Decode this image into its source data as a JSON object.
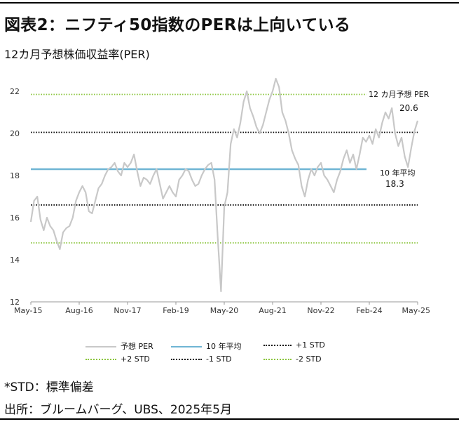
{
  "header": {
    "title": "図表2：ニフティ50指数のPERは上向いている",
    "subtitle": "12カ月予想株価収益率(PER)"
  },
  "footer": {
    "note": "*STD：標準偏差",
    "source": "出所：ブルームバーグ、UBS、2025年5月"
  },
  "legend": {
    "forward_per": "予想 PER",
    "avg": "10 年平均",
    "plus1": "+1 STD",
    "plus2": "+2 STD",
    "minus1": "-1 STD",
    "minus2": "-2 STD"
  },
  "annotations": {
    "per_label": "12 カ月予想 PER",
    "per_value": "20.6",
    "avg_label": "10 年平均",
    "avg_value": "18.3"
  },
  "colors": {
    "per_line": "#c8c8c8",
    "avg_line": "#6fb5d4",
    "std1_line": "#000000",
    "std2_line": "#8cc63f"
  },
  "chart_data": {
    "type": "line",
    "x_ticks": [
      "May-15",
      "Aug-16",
      "Nov-17",
      "Feb-19",
      "May-20",
      "Aug-21",
      "Nov-22",
      "Feb-24",
      "May-25"
    ],
    "y_ticks": [
      12,
      14,
      16,
      18,
      20,
      22
    ],
    "ylim": [
      12,
      23
    ],
    "xlim": [
      "2015-05",
      "2025-05"
    ],
    "grid": false,
    "legend_position": "bottom",
    "series": [
      {
        "name": "予想 PER",
        "points": [
          [
            "2015-05",
            15.8
          ],
          [
            "2015-06",
            16.8
          ],
          [
            "2015-07",
            17.0
          ],
          [
            "2015-08",
            15.9
          ],
          [
            "2015-09",
            15.4
          ],
          [
            "2015-10",
            16.0
          ],
          [
            "2015-11",
            15.6
          ],
          [
            "2015-12",
            15.4
          ],
          [
            "2016-01",
            14.9
          ],
          [
            "2016-02",
            14.5
          ],
          [
            "2016-03",
            15.3
          ],
          [
            "2016-04",
            15.5
          ],
          [
            "2016-05",
            15.6
          ],
          [
            "2016-06",
            16.0
          ],
          [
            "2016-07",
            16.8
          ],
          [
            "2016-08",
            17.2
          ],
          [
            "2016-09",
            17.5
          ],
          [
            "2016-10",
            17.2
          ],
          [
            "2016-11",
            16.3
          ],
          [
            "2016-12",
            16.2
          ],
          [
            "2017-01",
            16.8
          ],
          [
            "2017-02",
            17.4
          ],
          [
            "2017-03",
            17.6
          ],
          [
            "2017-04",
            18.0
          ],
          [
            "2017-05",
            18.3
          ],
          [
            "2017-06",
            18.4
          ],
          [
            "2017-07",
            18.6
          ],
          [
            "2017-08",
            18.2
          ],
          [
            "2017-09",
            18.0
          ],
          [
            "2017-10",
            18.6
          ],
          [
            "2017-11",
            18.4
          ],
          [
            "2017-12",
            18.6
          ],
          [
            "2018-01",
            19.0
          ],
          [
            "2018-02",
            18.2
          ],
          [
            "2018-03",
            17.5
          ],
          [
            "2018-04",
            17.9
          ],
          [
            "2018-05",
            17.8
          ],
          [
            "2018-06",
            17.6
          ],
          [
            "2018-07",
            18.0
          ],
          [
            "2018-08",
            18.3
          ],
          [
            "2018-09",
            17.6
          ],
          [
            "2018-10",
            16.9
          ],
          [
            "2018-11",
            17.2
          ],
          [
            "2018-12",
            17.5
          ],
          [
            "2019-01",
            17.2
          ],
          [
            "2019-02",
            17.0
          ],
          [
            "2019-03",
            17.8
          ],
          [
            "2019-04",
            18.0
          ],
          [
            "2019-05",
            18.3
          ],
          [
            "2019-06",
            18.2
          ],
          [
            "2019-07",
            17.8
          ],
          [
            "2019-08",
            17.5
          ],
          [
            "2019-09",
            17.6
          ],
          [
            "2019-10",
            18.0
          ],
          [
            "2019-11",
            18.3
          ],
          [
            "2019-12",
            18.5
          ],
          [
            "2020-01",
            18.6
          ],
          [
            "2020-02",
            17.8
          ],
          [
            "2020-03",
            15.0
          ],
          [
            "2020-04",
            12.5
          ],
          [
            "2020-05",
            16.5
          ],
          [
            "2020-06",
            17.2
          ],
          [
            "2020-07",
            19.5
          ],
          [
            "2020-08",
            20.2
          ],
          [
            "2020-09",
            19.8
          ],
          [
            "2020-10",
            20.5
          ],
          [
            "2020-11",
            21.5
          ],
          [
            "2020-12",
            22.0
          ],
          [
            "2021-01",
            21.2
          ],
          [
            "2021-02",
            20.8
          ],
          [
            "2021-03",
            20.3
          ],
          [
            "2021-04",
            20.0
          ],
          [
            "2021-05",
            20.4
          ],
          [
            "2021-06",
            21.0
          ],
          [
            "2021-07",
            21.6
          ],
          [
            "2021-08",
            22.0
          ],
          [
            "2021-09",
            22.6
          ],
          [
            "2021-10",
            22.2
          ],
          [
            "2021-11",
            21.0
          ],
          [
            "2021-12",
            20.6
          ],
          [
            "2022-01",
            20.0
          ],
          [
            "2022-02",
            19.2
          ],
          [
            "2022-03",
            18.8
          ],
          [
            "2022-04",
            18.5
          ],
          [
            "2022-05",
            17.5
          ],
          [
            "2022-06",
            17.0
          ],
          [
            "2022-07",
            17.8
          ],
          [
            "2022-08",
            18.3
          ],
          [
            "2022-09",
            18.0
          ],
          [
            "2022-10",
            18.4
          ],
          [
            "2022-11",
            18.6
          ],
          [
            "2022-12",
            18.0
          ],
          [
            "2023-01",
            17.8
          ],
          [
            "2023-02",
            17.5
          ],
          [
            "2023-03",
            17.2
          ],
          [
            "2023-04",
            17.8
          ],
          [
            "2023-05",
            18.2
          ],
          [
            "2023-06",
            18.8
          ],
          [
            "2023-07",
            19.2
          ],
          [
            "2023-08",
            18.6
          ],
          [
            "2023-09",
            19.0
          ],
          [
            "2023-10",
            18.3
          ],
          [
            "2023-11",
            19.0
          ],
          [
            "2023-12",
            19.8
          ],
          [
            "2024-01",
            19.6
          ],
          [
            "2024-02",
            19.9
          ],
          [
            "2024-03",
            19.5
          ],
          [
            "2024-04",
            20.2
          ],
          [
            "2024-05",
            19.8
          ],
          [
            "2024-06",
            20.5
          ],
          [
            "2024-07",
            21.0
          ],
          [
            "2024-08",
            20.7
          ],
          [
            "2024-09",
            21.2
          ],
          [
            "2024-10",
            20.0
          ],
          [
            "2024-11",
            19.4
          ],
          [
            "2024-12",
            19.8
          ],
          [
            "2025-01",
            18.9
          ],
          [
            "2025-02",
            18.4
          ],
          [
            "2025-03",
            19.3
          ],
          [
            "2025-04",
            20.1
          ],
          [
            "2025-05",
            20.6
          ]
        ]
      },
      {
        "name": "10 年平均",
        "constant": 18.3
      },
      {
        "name": "+1 STD",
        "constant": 20.05
      },
      {
        "name": "+2 STD",
        "constant": 21.85
      },
      {
        "name": "-1 STD",
        "constant": 16.6
      },
      {
        "name": "-2 STD",
        "constant": 14.8
      }
    ]
  }
}
